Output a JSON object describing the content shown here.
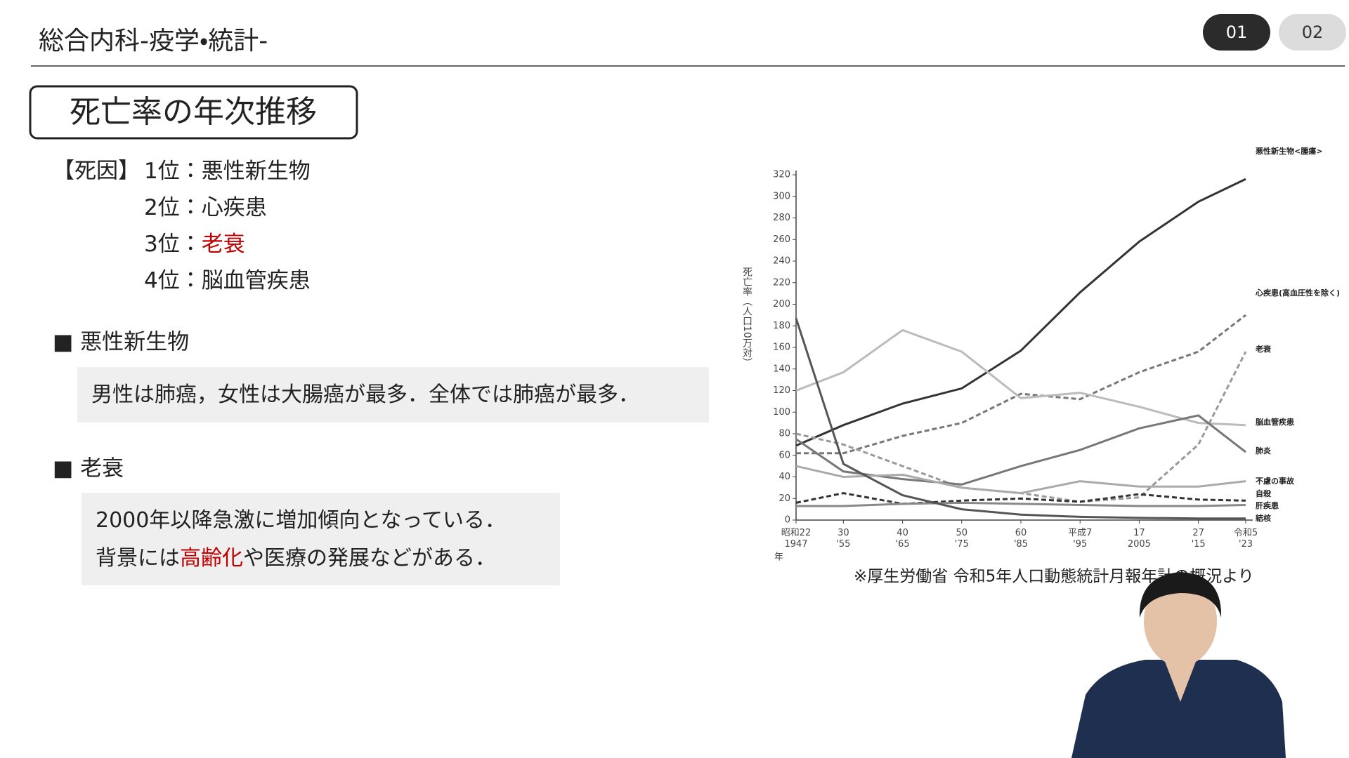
{
  "header": {
    "title": "総合内科-疫学・統計-",
    "tabs": [
      {
        "label": "01",
        "active": true
      },
      {
        "label": "02",
        "active": false
      }
    ]
  },
  "section_title": "死亡率の年次推移",
  "causes": {
    "label": "【死因】",
    "items": [
      {
        "rank": "1位：",
        "name": "悪性新生物"
      },
      {
        "rank": "2位：",
        "name": "心疾患"
      },
      {
        "rank": "3位：",
        "name": "老衰",
        "color": "#c00000"
      },
      {
        "rank": "4位：",
        "name": "脳血管疾患"
      }
    ]
  },
  "blocks": [
    {
      "heading": "■ 悪性新生物",
      "lines": [
        [
          "男性は肺癌，女性は大腸癌が最多．全体では肺癌が最多．"
        ]
      ]
    },
    {
      "heading": "■ 老衰",
      "lines": [
        [
          "2000年以降急激に増加傾向となっている．"
        ],
        [
          "背景には",
          "高齢化",
          "や医療の発展などがある．"
        ]
      ],
      "highlight": [
        1,
        1
      ],
      "highlight_color": "#c00000"
    }
  ],
  "chart_data": {
    "type": "line",
    "ylabel": "死亡率（人口10万対）",
    "xlabel": "年",
    "x": [
      1947,
      1955,
      1965,
      1975,
      1985,
      1995,
      2005,
      2015,
      2023
    ],
    "xlim": [
      1947,
      2023
    ],
    "xticks": [
      {
        "value": 1947,
        "label": "昭和22 1947"
      },
      {
        "value": 1955,
        "label": "30 '55"
      },
      {
        "value": 1965,
        "label": "40 '65"
      },
      {
        "value": 1975,
        "label": "50 '75"
      },
      {
        "value": 1985,
        "label": "60 '85"
      },
      {
        "value": 1995,
        "label": "平成7 '95"
      },
      {
        "value": 2005,
        "label": "17 2005"
      },
      {
        "value": 2015,
        "label": "27 '15"
      },
      {
        "value": 2023,
        "label": "令和5 '23"
      }
    ],
    "ylim": [
      0,
      320
    ],
    "yticks": [
      0,
      20,
      40,
      60,
      80,
      100,
      120,
      140,
      160,
      180,
      200,
      220,
      240,
      260,
      280,
      300,
      320
    ],
    "series": [
      {
        "name": "悪性新生物<腫瘍>",
        "color": "#333333",
        "dash": false,
        "values": [
          69,
          88,
          108,
          122,
          157,
          211,
          258,
          295,
          316
        ]
      },
      {
        "name": "心疾患(高血圧性を除く)",
        "color": "#777777",
        "dash": true,
        "values": [
          62,
          62,
          78,
          90,
          117,
          112,
          137,
          156,
          190
        ]
      },
      {
        "name": "老衰",
        "color": "#999999",
        "dash": true,
        "values": [
          80,
          70,
          50,
          30,
          25,
          17,
          21,
          70,
          156
        ]
      },
      {
        "name": "脳血管疾患",
        "color": "#bbbbbb",
        "dash": false,
        "values": [
          120,
          137,
          176,
          156,
          113,
          118,
          105,
          90,
          88
        ]
      },
      {
        "name": "肺炎",
        "color": "#777777",
        "dash": false,
        "values": [
          75,
          45,
          38,
          33,
          50,
          65,
          85,
          97,
          63
        ]
      },
      {
        "name": "不慮の事故",
        "color": "#aaaaaa",
        "dash": false,
        "values": [
          50,
          40,
          42,
          30,
          25,
          36,
          31,
          31,
          36
        ]
      },
      {
        "name": "自殺",
        "color": "#333333",
        "dash": true,
        "values": [
          16,
          25,
          15,
          18,
          20,
          17,
          24,
          19,
          18
        ]
      },
      {
        "name": "肝疾患",
        "color": "#888888",
        "dash": false,
        "values": [
          13,
          13,
          15,
          16,
          15,
          14,
          13,
          13,
          14
        ]
      },
      {
        "name": "結核",
        "color": "#555555",
        "dash": false,
        "values": [
          187,
          52,
          23,
          10,
          5,
          3,
          2,
          1.5,
          1.5
        ]
      }
    ]
  },
  "caption": "※厚生労働省 令和5年人口動態統計月報年計の概況より"
}
